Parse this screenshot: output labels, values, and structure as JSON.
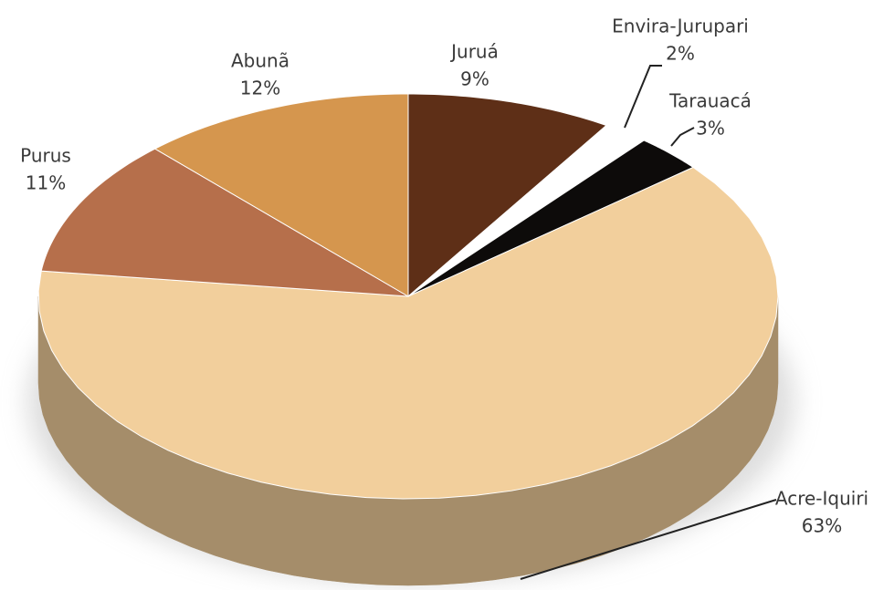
{
  "chart_data": {
    "type": "pie3d",
    "categories": [
      "Juruá",
      "Envira-Jurupari",
      "Tarauacá",
      "Acre-Iquiri",
      "Purus",
      "Abunã"
    ],
    "values": [
      9,
      2,
      3,
      63,
      11,
      12
    ],
    "value_labels": [
      "9%",
      "2%",
      "3%",
      "63%",
      "11%",
      "12%"
    ],
    "colors": [
      "#5e2f17",
      "#ffffff",
      "#0d0b0a",
      "#f2cf9c",
      "#b66f4b",
      "#d5964e"
    ]
  }
}
